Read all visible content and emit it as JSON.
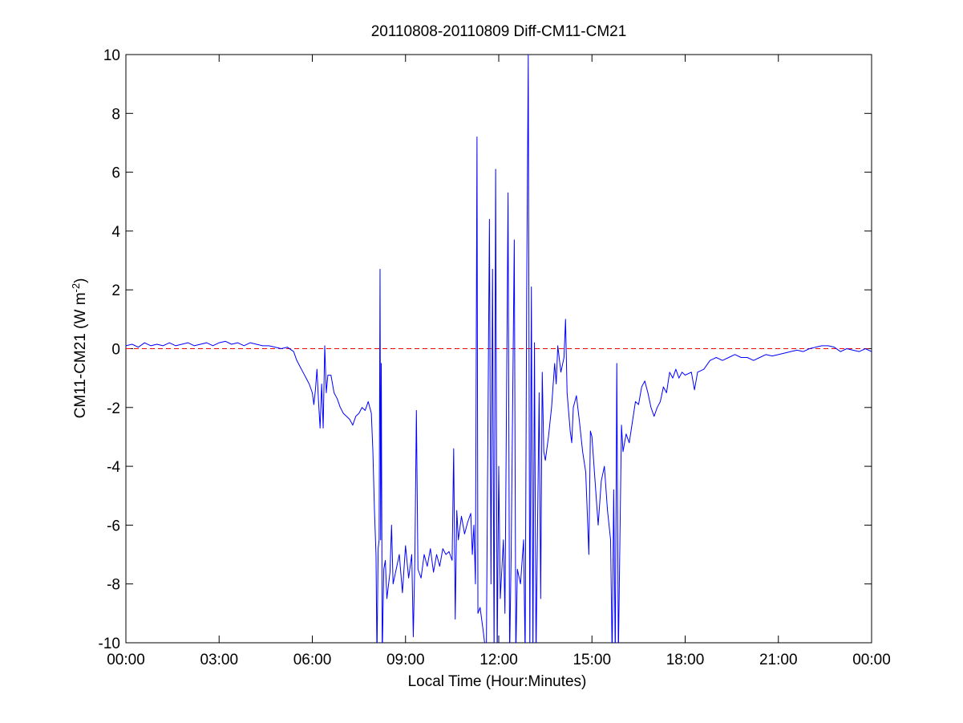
{
  "chart_data": {
    "type": "line",
    "title": "20110808-20110809 Diff-CM11-CM21",
    "xlabel": "Local Time (Hour:Minutes)",
    "ylabel": {
      "text": "CM11-CM21 (W m",
      "superscript": "-2",
      "suffix": ")"
    },
    "color": "#0000ff",
    "reference_line": {
      "value": 0,
      "color": "#ff0000",
      "style": "dashed"
    },
    "xlim": [
      0,
      24
    ],
    "xticks": [
      {
        "value": 0,
        "label": "00:00"
      },
      {
        "value": 3,
        "label": "03:00"
      },
      {
        "value": 6,
        "label": "06:00"
      },
      {
        "value": 9,
        "label": "09:00"
      },
      {
        "value": 12,
        "label": "12:00"
      },
      {
        "value": 15,
        "label": "15:00"
      },
      {
        "value": 18,
        "label": "18:00"
      },
      {
        "value": 21,
        "label": "21:00"
      },
      {
        "value": 24,
        "label": "00:00"
      }
    ],
    "ylim": [
      -10,
      10
    ],
    "yticks": [
      -10,
      -8,
      -6,
      -4,
      -2,
      0,
      2,
      4,
      6,
      8,
      10
    ],
    "grid": false,
    "x": [
      0,
      0.2,
      0.4,
      0.6,
      0.8,
      1.0,
      1.2,
      1.4,
      1.6,
      1.8,
      2.0,
      2.2,
      2.4,
      2.6,
      2.8,
      3.0,
      3.2,
      3.4,
      3.6,
      3.8,
      4.0,
      4.2,
      4.4,
      4.6,
      4.8,
      5.0,
      5.2,
      5.4,
      5.5,
      5.6,
      5.7,
      5.8,
      5.9,
      6.0,
      6.05,
      6.1,
      6.15,
      6.2,
      6.25,
      6.3,
      6.35,
      6.4,
      6.45,
      6.5,
      6.6,
      6.7,
      6.8,
      6.9,
      7.0,
      7.2,
      7.3,
      7.4,
      7.5,
      7.6,
      7.7,
      7.8,
      7.9,
      7.95,
      8.0,
      8.05,
      8.08,
      8.12,
      8.15,
      8.18,
      8.2,
      8.22,
      8.25,
      8.3,
      8.35,
      8.4,
      8.5,
      8.55,
      8.6,
      8.7,
      8.8,
      8.9,
      9.0,
      9.1,
      9.2,
      9.25,
      9.3,
      9.35,
      9.4,
      9.5,
      9.6,
      9.7,
      9.8,
      9.9,
      10.0,
      10.1,
      10.2,
      10.3,
      10.4,
      10.5,
      10.55,
      10.6,
      10.65,
      10.7,
      10.8,
      10.9,
      11.0,
      11.1,
      11.15,
      11.2,
      11.25,
      11.3,
      11.33,
      11.4,
      11.5,
      11.6,
      11.65,
      11.7,
      11.75,
      11.8,
      11.85,
      11.9,
      11.95,
      12.0,
      12.05,
      12.15,
      12.2,
      12.3,
      12.35,
      12.4,
      12.5,
      12.55,
      12.6,
      12.7,
      12.8,
      12.85,
      12.9,
      12.95,
      13.0,
      13.05,
      13.1,
      13.15,
      13.2,
      13.3,
      13.35,
      13.4,
      13.45,
      13.5,
      13.6,
      13.7,
      13.8,
      13.85,
      13.9,
      14.0,
      14.1,
      14.15,
      14.2,
      14.3,
      14.35,
      14.4,
      14.5,
      14.6,
      14.7,
      14.8,
      14.9,
      14.95,
      15.0,
      15.1,
      15.2,
      15.3,
      15.4,
      15.5,
      15.6,
      15.65,
      15.7,
      15.75,
      15.8,
      15.85,
      15.9,
      15.95,
      16.0,
      16.1,
      16.2,
      16.3,
      16.4,
      16.5,
      16.6,
      16.7,
      16.8,
      16.9,
      17.0,
      17.1,
      17.2,
      17.3,
      17.4,
      17.5,
      17.6,
      17.7,
      17.8,
      17.9,
      18.0,
      18.2,
      18.3,
      18.4,
      18.6,
      18.8,
      19.0,
      19.2,
      19.4,
      19.6,
      19.8,
      20.0,
      20.2,
      20.4,
      20.6,
      20.8,
      21.0,
      21.2,
      21.4,
      21.6,
      21.8,
      22.0,
      22.2,
      22.4,
      22.6,
      22.8,
      23.0,
      23.2,
      23.4,
      23.6,
      23.8,
      24.0
    ],
    "values": [
      0.1,
      0.15,
      0.05,
      0.2,
      0.1,
      0.15,
      0.1,
      0.2,
      0.1,
      0.15,
      0.2,
      0.1,
      0.15,
      0.2,
      0.1,
      0.2,
      0.25,
      0.15,
      0.2,
      0.1,
      0.2,
      0.15,
      0.1,
      0.1,
      0.05,
      0.0,
      0.05,
      -0.1,
      -0.4,
      -0.6,
      -0.8,
      -1.0,
      -1.2,
      -1.5,
      -1.9,
      -1.4,
      -0.7,
      -1.8,
      -2.7,
      -1.2,
      -2.7,
      0.1,
      -1.5,
      -0.9,
      -0.9,
      -1.5,
      -1.7,
      -2.0,
      -2.2,
      -2.4,
      -2.6,
      -2.3,
      -2.2,
      -2.0,
      -2.1,
      -1.8,
      -2.2,
      -3.5,
      -5.5,
      -7.0,
      -10.5,
      -6.8,
      -6.5,
      2.7,
      -6.5,
      -0.5,
      -10.5,
      -7.5,
      -7.2,
      -8.5,
      -7.6,
      -6.0,
      -8.0,
      -7.5,
      -7.0,
      -8.3,
      -6.7,
      -7.8,
      -7.0,
      -9.8,
      -7.2,
      -2.1,
      -7.5,
      -7.8,
      -7.0,
      -7.4,
      -6.8,
      -7.6,
      -7.0,
      -7.4,
      -6.8,
      -7.0,
      -6.9,
      -7.2,
      -3.4,
      -9.2,
      -5.5,
      -6.5,
      -5.7,
      -6.3,
      -5.9,
      -5.6,
      -7.0,
      -6.0,
      -8.0,
      7.2,
      -9.0,
      -8.8,
      -9.6,
      -10.5,
      -3.0,
      4.4,
      -8.0,
      2.7,
      -10.5,
      6.1,
      -10.5,
      -4.0,
      -8.5,
      -6.5,
      -9.0,
      5.3,
      -10.5,
      -7.0,
      3.7,
      -10.5,
      -7.5,
      -8.0,
      -6.5,
      -10.5,
      2.0,
      10.0,
      -10.5,
      2.1,
      -10.5,
      0.2,
      -10.5,
      -1.5,
      -8.5,
      -0.8,
      -3.5,
      -3.8,
      -3.0,
      -2.0,
      -0.5,
      -1.2,
      0.1,
      -0.8,
      -0.3,
      1.0,
      -1.5,
      -2.8,
      -3.2,
      -2.0,
      -1.6,
      -2.5,
      -3.5,
      -4.2,
      -7.0,
      -2.8,
      -3.0,
      -4.5,
      -6.0,
      -4.5,
      -4.0,
      -5.5,
      -6.5,
      -10.5,
      -4.8,
      -10.5,
      -0.5,
      -10.5,
      -6.5,
      -2.6,
      -3.5,
      -2.9,
      -3.2,
      -2.5,
      -1.8,
      -1.9,
      -1.3,
      -1.1,
      -1.5,
      -2.0,
      -2.3,
      -2.0,
      -1.8,
      -1.3,
      -1.5,
      -0.8,
      -1.0,
      -0.7,
      -1.0,
      -0.8,
      -0.9,
      -0.8,
      -1.4,
      -0.8,
      -0.7,
      -0.4,
      -0.3,
      -0.4,
      -0.3,
      -0.2,
      -0.3,
      -0.3,
      -0.4,
      -0.3,
      -0.2,
      -0.25,
      -0.2,
      -0.15,
      -0.1,
      -0.05,
      -0.1,
      0.0,
      0.05,
      0.1,
      0.1,
      0.05,
      -0.1,
      0.0,
      -0.05,
      -0.1,
      0.0,
      -0.1
    ]
  }
}
